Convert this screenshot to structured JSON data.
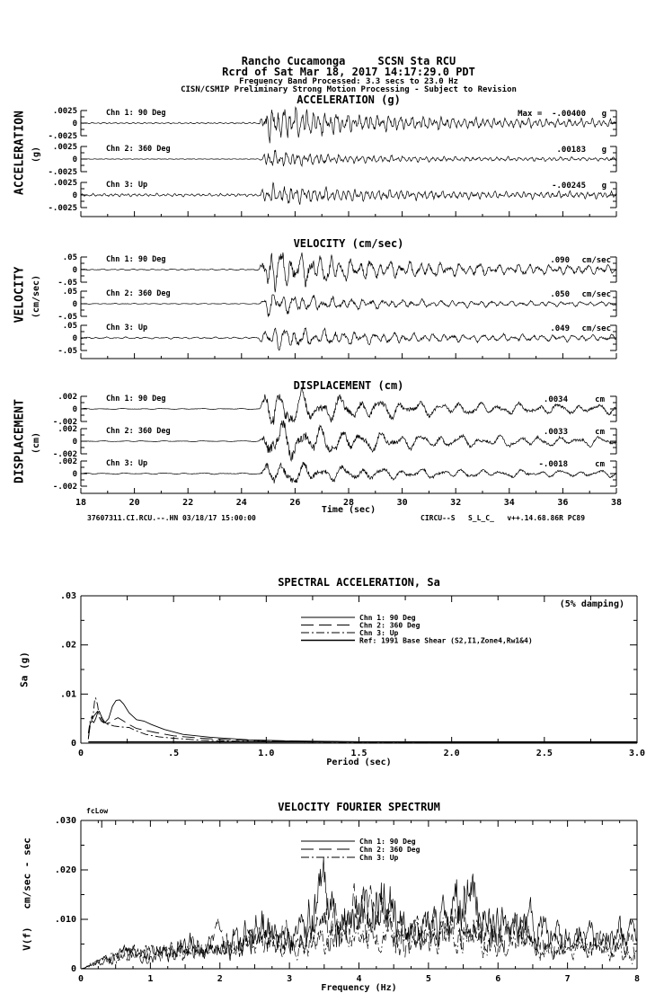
{
  "header": {
    "line1": "Rancho Cucamonga     SCSN Sta RCU",
    "line2": "Rcrd of Sat Mar 18, 2017 14:17:29.0 PDT",
    "line3": "Frequency Band Processed: 3.3 secs to 23.0 Hz",
    "line4": "CISN/CSMIP Preliminary Strong Motion Processing - Subject to Revision"
  },
  "time_axis": {
    "label": "Time (sec)",
    "min": 18,
    "max": 38,
    "tick_labels": [
      "18",
      "20",
      "22",
      "24",
      "26",
      "28",
      "30",
      "32",
      "34",
      "36",
      "38"
    ]
  },
  "footer": {
    "left": "37607311.CI.RCU.--.HN 03/18/17 15:00:00",
    "right": "CIRCU--S   S_L_C_   v++.14.68.86R PC89"
  },
  "chart_data": [
    {
      "type": "line",
      "kind": "timeseries",
      "title": "ACCELERATION (g)",
      "side_label": "ACCELERATION",
      "side_unit": "(g)",
      "x_range": [
        18,
        38
      ],
      "yscale": 0.0025,
      "ytick_labels": [
        ".0025",
        "0",
        "-.0025"
      ],
      "channels": [
        {
          "label": "Chn 1: 90 Deg",
          "peak_label": "Max =  -.00400",
          "unit_label": "g",
          "peak_value": -0.004
        },
        {
          "label": "Chn 2: 360 Deg",
          "peak_label": ".00183",
          "unit_label": "g",
          "peak_value": 0.00183
        },
        {
          "label": "Chn 3: Up",
          "peak_label": "-.00245",
          "unit_label": "g",
          "peak_value": -0.00245
        }
      ]
    },
    {
      "type": "line",
      "kind": "timeseries",
      "title": "VELOCITY (cm/sec)",
      "side_label": "VELOCITY",
      "side_unit": "(cm/sec)",
      "x_range": [
        18,
        38
      ],
      "yscale": 0.05,
      "ytick_labels": [
        ".05",
        "0",
        "-.05"
      ],
      "channels": [
        {
          "label": "Chn 1: 90 Deg",
          "peak_label": ".090",
          "unit_label": "cm/sec",
          "peak_value": 0.09
        },
        {
          "label": "Chn 2: 360 Deg",
          "peak_label": ".050",
          "unit_label": "cm/sec",
          "peak_value": 0.05
        },
        {
          "label": "Chn 3: Up",
          "peak_label": ".049",
          "unit_label": "cm/sec",
          "peak_value": 0.049
        }
      ]
    },
    {
      "type": "line",
      "kind": "timeseries",
      "title": "DISPLACEMENT (cm)",
      "side_label": "DISPLACEMENT",
      "side_unit": "(cm)",
      "x_range": [
        18,
        38
      ],
      "yscale": 0.002,
      "ytick_labels": [
        ".002",
        "0",
        "-.002"
      ],
      "channels": [
        {
          "label": "Chn 1: 90 Deg",
          "peak_label": ".0034",
          "unit_label": "cm",
          "peak_value": 0.0034
        },
        {
          "label": "Chn 2: 360 Deg",
          "peak_label": ".0033",
          "unit_label": "cm",
          "peak_value": 0.0033
        },
        {
          "label": "Chn 3: Up",
          "peak_label": "-.0018",
          "unit_label": "cm",
          "peak_value": -0.0018
        }
      ]
    },
    {
      "type": "line",
      "kind": "spectrum",
      "title": "SPECTRAL ACCELERATION, Sa",
      "annotation": "(5% damping)",
      "xlabel": "Period (sec)",
      "ylabel": "Sa (g)",
      "xlim": [
        0,
        3
      ],
      "ylim": [
        0,
        0.03
      ],
      "xticks": [
        0,
        0.5,
        1.0,
        1.5,
        2.0,
        2.5,
        3.0
      ],
      "xtick_labels": [
        "0",
        ".5",
        "1.0",
        "1.5",
        "2.0",
        "2.5",
        "3.0"
      ],
      "yticks": [
        0,
        0.01,
        0.02,
        0.03
      ],
      "ytick_labels": [
        "0",
        ".01",
        ".02",
        ".03"
      ],
      "series": [
        {
          "name": "Chn 1: 90 Deg",
          "dash": "solid",
          "points": [
            [
              0.04,
              0.0008
            ],
            [
              0.05,
              0.004
            ],
            [
              0.06,
              0.0045
            ],
            [
              0.07,
              0.0042
            ],
            [
              0.08,
              0.005
            ],
            [
              0.09,
              0.0062
            ],
            [
              0.1,
              0.0065
            ],
            [
              0.11,
              0.0055
            ],
            [
              0.12,
              0.0048
            ],
            [
              0.13,
              0.0042
            ],
            [
              0.15,
              0.005
            ],
            [
              0.17,
              0.0075
            ],
            [
              0.19,
              0.0087
            ],
            [
              0.21,
              0.0088
            ],
            [
              0.23,
              0.008
            ],
            [
              0.26,
              0.0062
            ],
            [
              0.3,
              0.0048
            ],
            [
              0.34,
              0.0045
            ],
            [
              0.38,
              0.0038
            ],
            [
              0.45,
              0.0028
            ],
            [
              0.55,
              0.0018
            ],
            [
              0.7,
              0.0012
            ],
            [
              0.9,
              0.0007
            ],
            [
              1.1,
              0.0005
            ],
            [
              1.5,
              0.0003
            ],
            [
              2.0,
              0.0002
            ],
            [
              2.5,
              0.00015
            ],
            [
              3.0,
              0.0001
            ]
          ]
        },
        {
          "name": "Chn 2: 360 Deg",
          "dash": "longdash",
          "points": [
            [
              0.04,
              0.001
            ],
            [
              0.05,
              0.0035
            ],
            [
              0.06,
              0.005
            ],
            [
              0.07,
              0.0055
            ],
            [
              0.08,
              0.006
            ],
            [
              0.09,
              0.0065
            ],
            [
              0.1,
              0.006
            ],
            [
              0.11,
              0.005
            ],
            [
              0.12,
              0.0044
            ],
            [
              0.14,
              0.004
            ],
            [
              0.16,
              0.0042
            ],
            [
              0.18,
              0.0048
            ],
            [
              0.2,
              0.0052
            ],
            [
              0.23,
              0.0045
            ],
            [
              0.26,
              0.0038
            ],
            [
              0.3,
              0.003
            ],
            [
              0.35,
              0.0026
            ],
            [
              0.4,
              0.0022
            ],
            [
              0.5,
              0.0015
            ],
            [
              0.65,
              0.001
            ],
            [
              0.85,
              0.0006
            ],
            [
              1.1,
              0.0004
            ],
            [
              1.5,
              0.00025
            ],
            [
              2.0,
              0.00015
            ],
            [
              3.0,
              0.0001
            ]
          ]
        },
        {
          "name": "Chn 3: Up",
          "dash": "dashdot",
          "points": [
            [
              0.04,
              0.002
            ],
            [
              0.05,
              0.0045
            ],
            [
              0.06,
              0.0055
            ],
            [
              0.065,
              0.005
            ],
            [
              0.07,
              0.007
            ],
            [
              0.075,
              0.009
            ],
            [
              0.08,
              0.0092
            ],
            [
              0.09,
              0.0078
            ],
            [
              0.1,
              0.0052
            ],
            [
              0.11,
              0.0045
            ],
            [
              0.13,
              0.004
            ],
            [
              0.15,
              0.0038
            ],
            [
              0.18,
              0.0035
            ],
            [
              0.22,
              0.0033
            ],
            [
              0.26,
              0.0032
            ],
            [
              0.3,
              0.0025
            ],
            [
              0.35,
              0.0018
            ],
            [
              0.42,
              0.0013
            ],
            [
              0.5,
              0.001
            ],
            [
              0.65,
              0.0006
            ],
            [
              0.85,
              0.0004
            ],
            [
              1.2,
              0.00025
            ],
            [
              1.6,
              0.00015
            ],
            [
              2.2,
              0.0001
            ],
            [
              3.0,
              8e-05
            ]
          ]
        },
        {
          "name": "Ref: 1991 Base Shear (S2,I1,Zone4,Rw1&4)",
          "dash": "solid",
          "points": [
            [
              0.04,
              0.00025
            ],
            [
              3.0,
              0.00025
            ]
          ]
        }
      ]
    },
    {
      "type": "line",
      "kind": "fourier",
      "title": "VELOCITY FOURIER SPECTRUM",
      "corner_label": "fcLow",
      "xlabel": "Frequency (Hz)",
      "ylabel": "V(f)   cm/sec - sec",
      "xlim": [
        0,
        8
      ],
      "ylim": [
        0,
        0.03
      ],
      "xticks": [
        0,
        1,
        2,
        3,
        4,
        5,
        6,
        7,
        8
      ],
      "xtick_labels": [
        "0",
        "1",
        "2",
        "3",
        "4",
        "5",
        "6",
        "7",
        "8"
      ],
      "yticks": [
        0,
        0.01,
        0.02,
        0.03
      ],
      "ytick_labels": [
        "0",
        ".010",
        ".020",
        ".030"
      ],
      "series": [
        {
          "name": "Chn 1: 90 Deg",
          "dash": "solid",
          "envelope": [
            [
              0,
              0.0005
            ],
            [
              0.4,
              0.002
            ],
            [
              0.7,
              0.0045
            ],
            [
              1.0,
              0.004
            ],
            [
              1.3,
              0.005
            ],
            [
              1.6,
              0.007
            ],
            [
              2.0,
              0.006
            ],
            [
              2.3,
              0.008
            ],
            [
              2.6,
              0.012
            ],
            [
              2.9,
              0.008
            ],
            [
              3.2,
              0.012
            ],
            [
              3.5,
              0.021
            ],
            [
              3.7,
              0.016
            ],
            [
              4.0,
              0.012
            ],
            [
              4.25,
              0.022
            ],
            [
              4.5,
              0.014
            ],
            [
              4.8,
              0.01
            ],
            [
              5.1,
              0.011
            ],
            [
              5.5,
              0.018
            ],
            [
              5.8,
              0.015
            ],
            [
              6.1,
              0.01
            ],
            [
              6.5,
              0.012
            ],
            [
              6.9,
              0.007
            ],
            [
              7.3,
              0.008
            ],
            [
              7.7,
              0.009
            ],
            [
              8,
              0.008
            ]
          ]
        },
        {
          "name": "Chn 2: 360 Deg",
          "dash": "longdash",
          "envelope": [
            [
              0,
              0.0004
            ],
            [
              0.4,
              0.0025
            ],
            [
              0.8,
              0.004
            ],
            [
              1.2,
              0.0045
            ],
            [
              1.6,
              0.006
            ],
            [
              2.0,
              0.0075
            ],
            [
              2.4,
              0.007
            ],
            [
              2.8,
              0.009
            ],
            [
              3.2,
              0.008
            ],
            [
              3.5,
              0.012
            ],
            [
              3.9,
              0.014
            ],
            [
              4.3,
              0.016
            ],
            [
              4.7,
              0.012
            ],
            [
              5.0,
              0.009
            ],
            [
              5.4,
              0.012
            ],
            [
              5.8,
              0.011
            ],
            [
              6.2,
              0.009
            ],
            [
              6.6,
              0.008
            ],
            [
              7.0,
              0.006
            ],
            [
              7.4,
              0.007
            ],
            [
              8,
              0.0075
            ]
          ]
        },
        {
          "name": "Chn 3: Up",
          "dash": "dashdot",
          "envelope": [
            [
              0,
              0.0004
            ],
            [
              0.5,
              0.003
            ],
            [
              1.0,
              0.0045
            ],
            [
              1.5,
              0.005
            ],
            [
              2.0,
              0.005
            ],
            [
              2.5,
              0.007
            ],
            [
              3.0,
              0.006
            ],
            [
              3.5,
              0.008
            ],
            [
              4.0,
              0.007
            ],
            [
              4.5,
              0.009
            ],
            [
              5.0,
              0.008
            ],
            [
              5.5,
              0.01
            ],
            [
              6.0,
              0.007
            ],
            [
              6.5,
              0.006
            ],
            [
              7.0,
              0.005
            ],
            [
              7.5,
              0.005
            ],
            [
              8,
              0.0045
            ]
          ]
        }
      ]
    }
  ]
}
